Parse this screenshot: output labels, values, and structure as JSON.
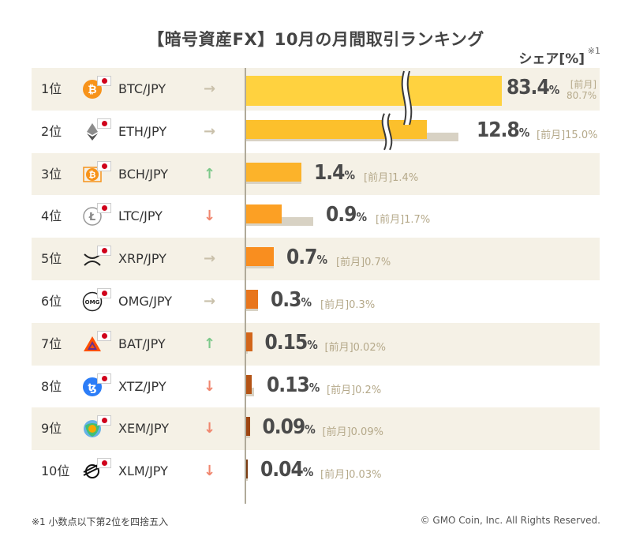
{
  "title": "【暗号資産FX】10月の月間取引ランキング",
  "share_label": "シェア[%]",
  "share_note": "※1",
  "prev_prefix": "[前月]",
  "footnote": "※1  小数点以下第2位を四捨五入",
  "copyright": "© GMO Coin, Inc. All Rights Reserved.",
  "colors": {
    "row_shade": "#f5f1e6",
    "prev_bar": "#d8d2c4",
    "axis": "#b0aa9a"
  },
  "chart_data": {
    "type": "bar",
    "orientation": "horizontal",
    "unit": "%",
    "axis_break": true,
    "categories": [
      "BTC/JPY",
      "ETH/JPY",
      "BCH/JPY",
      "LTC/JPY",
      "XRP/JPY",
      "OMG/JPY",
      "BAT/JPY",
      "XTZ/JPY",
      "XEM/JPY",
      "XLM/JPY"
    ],
    "series": [
      {
        "name": "10月",
        "values": [
          83.4,
          12.8,
          1.4,
          0.9,
          0.7,
          0.3,
          0.15,
          0.13,
          0.09,
          0.04
        ]
      },
      {
        "name": "前月",
        "values": [
          80.7,
          15.0,
          1.4,
          1.7,
          0.7,
          0.3,
          0.02,
          0.2,
          0.09,
          0.03
        ]
      }
    ],
    "bar_colors": [
      "#ffd23f",
      "#fcc02c",
      "#fcb32a",
      "#fca024",
      "#f98e1f",
      "#e8761d",
      "#d2661b",
      "#b45416",
      "#9e4612",
      "#7a3a10"
    ]
  },
  "rows": [
    {
      "rank": "1位",
      "pair": "BTC/JPY",
      "trend": "same",
      "arrow": "→",
      "icon": "bitcoin-icon",
      "value": "83.4",
      "pct": "%",
      "prev": "80.7%"
    },
    {
      "rank": "2位",
      "pair": "ETH/JPY",
      "trend": "same",
      "arrow": "→",
      "icon": "ethereum-icon",
      "value": "12.8",
      "pct": "%",
      "prev": "15.0%"
    },
    {
      "rank": "3位",
      "pair": "BCH/JPY",
      "trend": "up",
      "arrow": "↑",
      "icon": "bitcoin-cash-icon",
      "value": "1.4",
      "pct": "%",
      "prev": "1.4%"
    },
    {
      "rank": "4位",
      "pair": "LTC/JPY",
      "trend": "down",
      "arrow": "↓",
      "icon": "litecoin-icon",
      "value": "0.9",
      "pct": "%",
      "prev": "1.7%"
    },
    {
      "rank": "5位",
      "pair": "XRP/JPY",
      "trend": "same",
      "arrow": "→",
      "icon": "xrp-icon",
      "value": "0.7",
      "pct": "%",
      "prev": "0.7%"
    },
    {
      "rank": "6位",
      "pair": "OMG/JPY",
      "trend": "same",
      "arrow": "→",
      "icon": "omg-icon",
      "icon_text": "OMG",
      "value": "0.3",
      "pct": "%",
      "prev": "0.3%"
    },
    {
      "rank": "7位",
      "pair": "BAT/JPY",
      "trend": "up",
      "arrow": "↑",
      "icon": "bat-icon",
      "value": "0.15",
      "pct": "%",
      "prev": "0.02%"
    },
    {
      "rank": "8位",
      "pair": "XTZ/JPY",
      "trend": "down",
      "arrow": "↓",
      "icon": "tezos-icon",
      "value": "0.13",
      "pct": "%",
      "prev": "0.2%"
    },
    {
      "rank": "9位",
      "pair": "XEM/JPY",
      "trend": "down",
      "arrow": "↓",
      "icon": "nem-icon",
      "value": "0.09",
      "pct": "%",
      "prev": "0.09%"
    },
    {
      "rank": "10位",
      "pair": "XLM/JPY",
      "trend": "down",
      "arrow": "↓",
      "icon": "stellar-icon",
      "value": "0.04",
      "pct": "%",
      "prev": "0.03%"
    }
  ]
}
